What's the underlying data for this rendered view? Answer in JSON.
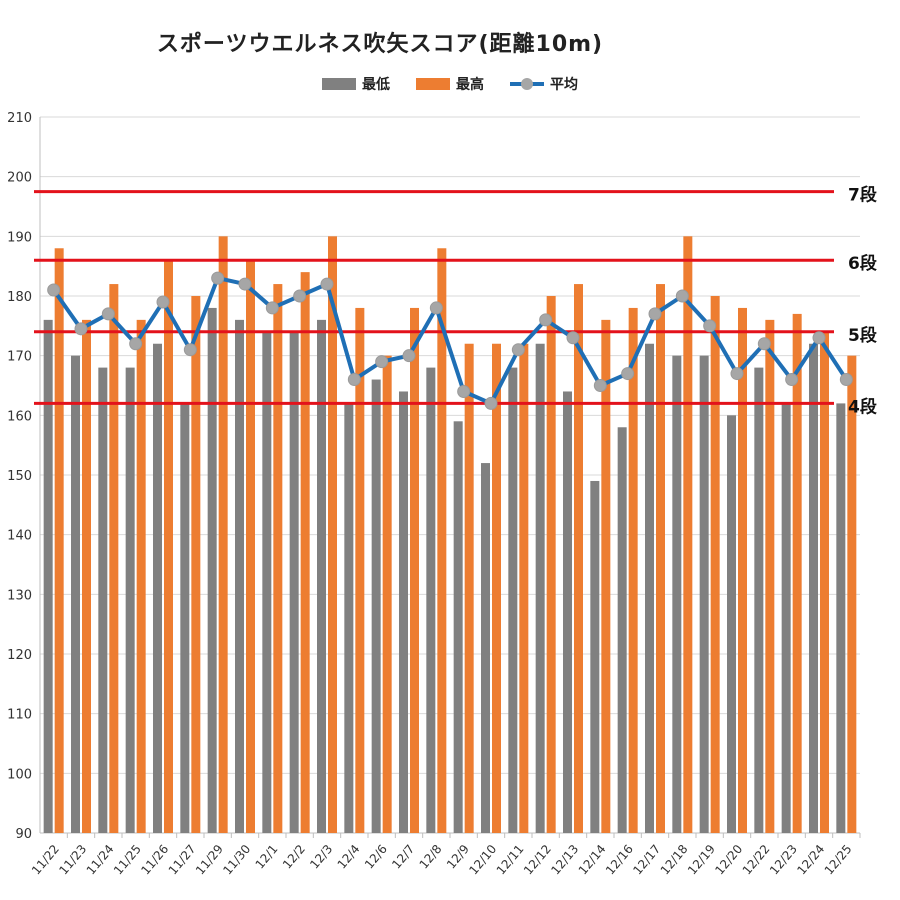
{
  "chart_data": {
    "type": "bar",
    "title": "スポーツウエルネス吹矢スコア(距離10m)",
    "xlabel": "",
    "ylabel": "",
    "ylim": [
      90,
      210
    ],
    "yticks": [
      90,
      100,
      110,
      120,
      130,
      140,
      150,
      160,
      170,
      180,
      190,
      200,
      210
    ],
    "grid": true,
    "legend_position": "top",
    "categories": [
      "11/22",
      "11/23",
      "11/24",
      "11/25",
      "11/26",
      "11/27",
      "11/29",
      "11/30",
      "12/1",
      "12/2",
      "12/3",
      "12/4",
      "12/6",
      "12/7",
      "12/8",
      "12/9",
      "12/10",
      "12/11",
      "12/12",
      "12/13",
      "12/14",
      "12/16",
      "12/17",
      "12/18",
      "12/19",
      "12/20",
      "12/22",
      "12/23",
      "12/24",
      "12/25"
    ],
    "series": [
      {
        "name": "最低",
        "type": "bar",
        "color": "#808080",
        "values": [
          176,
          170,
          168,
          168,
          172,
          162,
          178,
          176,
          174,
          174,
          176,
          162,
          166,
          164,
          168,
          159,
          152,
          168,
          172,
          164,
          149,
          158,
          172,
          170,
          170,
          160,
          168,
          162,
          172,
          162
        ]
      },
      {
        "name": "最高",
        "type": "bar",
        "color": "#ed7d31",
        "values": [
          188,
          176,
          182,
          176,
          186,
          180,
          190,
          186,
          182,
          184,
          190,
          178,
          170,
          178,
          188,
          172,
          172,
          172,
          180,
          182,
          176,
          178,
          182,
          190,
          180,
          178,
          176,
          177,
          174,
          170
        ]
      },
      {
        "name": "平均",
        "type": "line",
        "color": "#1f6fb5",
        "marker_color": "#a6a6a6",
        "values": [
          181,
          174.5,
          177,
          172,
          179,
          171,
          183,
          182,
          178,
          180,
          182,
          166,
          169,
          170,
          178,
          164,
          162,
          171,
          176,
          173,
          165,
          167,
          177,
          180,
          175,
          167,
          172,
          166,
          173,
          166
        ]
      }
    ],
    "reference_lines": [
      {
        "label": "7段",
        "value": 197.5,
        "color": "#e3121b"
      },
      {
        "label": "6段",
        "value": 186,
        "color": "#e3121b"
      },
      {
        "label": "5段",
        "value": 174,
        "color": "#e3121b"
      },
      {
        "label": "4段",
        "value": 162,
        "color": "#e3121b"
      }
    ]
  }
}
